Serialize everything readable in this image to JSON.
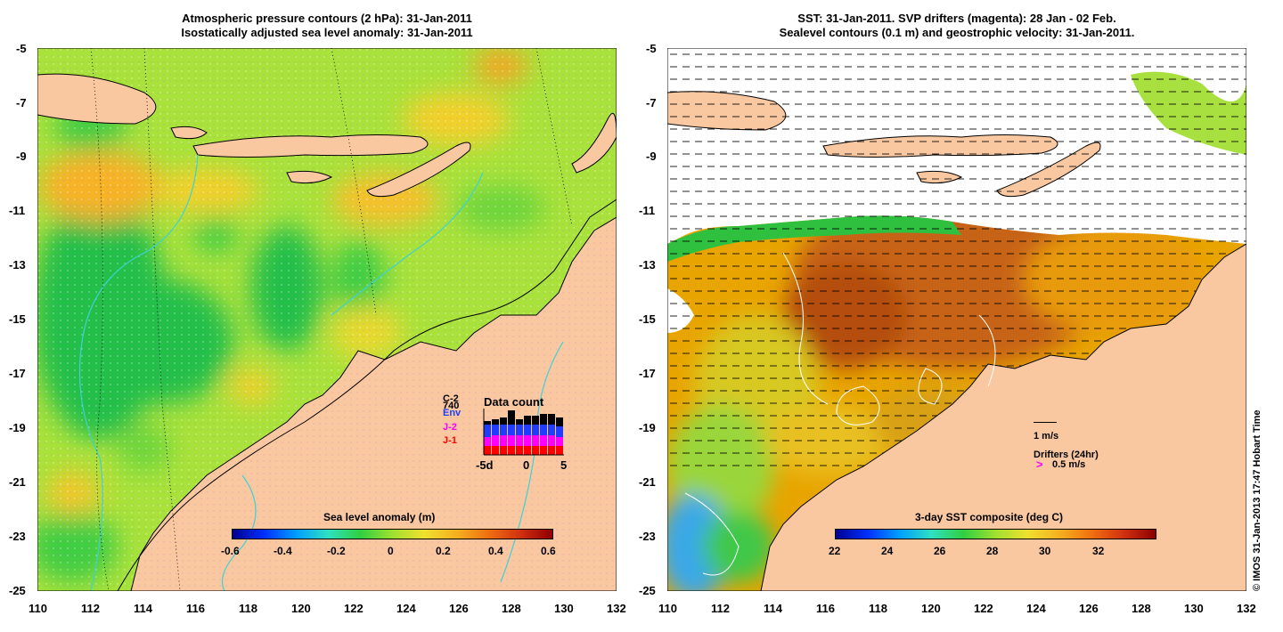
{
  "left_panel": {
    "title_line1": "Atmospheric pressure contours (2 hPa): 31-Jan-2011",
    "title_line2": "Isostatically adjusted sea level anomaly: 31-Jan-2011",
    "colorbar_title": "Sea level anomaly (m)",
    "colorbar_ticks": [
      "-0.6",
      "-0.4",
      "-0.2",
      "0",
      "0.2",
      "0.4",
      "0.6"
    ],
    "legend": {
      "title": "Data count",
      "series": [
        {
          "name": "C-2",
          "color": "#000000"
        },
        {
          "name": "740",
          "color": "#000000"
        },
        {
          "name": "Env",
          "color": "#1f3cff"
        },
        {
          "name": "J-2",
          "color": "#ff00ff"
        },
        {
          "name": "J-1",
          "color": "#ff0000"
        }
      ],
      "x_ticks": [
        "-5d",
        "0",
        "5"
      ]
    }
  },
  "right_panel": {
    "title_line1": "SST: 31-Jan-2011. SVP drifters (magenta): 28 Jan - 02 Feb.",
    "title_line2": "Sealevel contours (0.1 m) and geostrophic velocity: 31-Jan-2011.",
    "colorbar_title": "3-day SST composite (deg C)",
    "colorbar_ticks": [
      "22",
      "24",
      "26",
      "28",
      "30",
      "32"
    ],
    "velocity_scale_label": "1 m/s",
    "drifters_label": "Drifters (24hr)",
    "drifter_scale_label": "0.5 m/s",
    "drifter_glyph": ">"
  },
  "y_ticks": [
    "-5",
    "-7",
    "-9",
    "-11",
    "-13",
    "-15",
    "-17",
    "-19",
    "-21",
    "-23",
    "-25"
  ],
  "x_ticks": [
    "110",
    "112",
    "114",
    "116",
    "118",
    "120",
    "122",
    "124",
    "126",
    "128",
    "130",
    "132"
  ],
  "copyright": "© IMOS 31-Jan-2013 17:47 Hobart Time",
  "colors": {
    "land": "#f9c8a0",
    "coast": "#000000",
    "sla_bg": "#a8e23a",
    "sst_bg": "#e8a400"
  }
}
